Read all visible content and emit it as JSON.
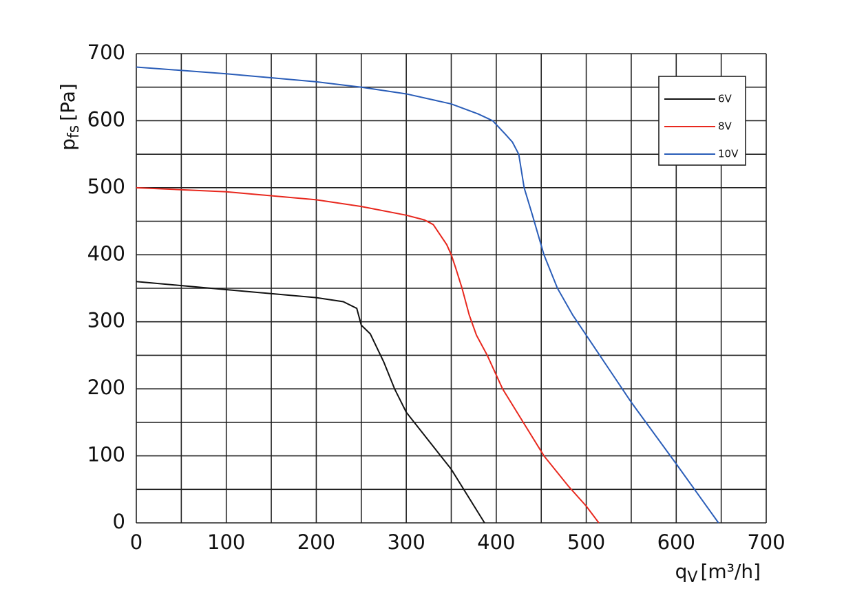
{
  "chart_data": {
    "type": "line",
    "ylabel": {
      "symbol": "p",
      "subscript": "fs",
      "unit": "[Pa]"
    },
    "xlabel": {
      "symbol": "q",
      "subscript": "V",
      "unit": "[m³/h]"
    },
    "xlim": [
      0,
      700
    ],
    "ylim": [
      0,
      700
    ],
    "xticks": [
      0,
      100,
      200,
      300,
      400,
      500,
      600,
      700
    ],
    "yticks": [
      0,
      100,
      200,
      300,
      400,
      500,
      600,
      700
    ],
    "minor_xticks": [
      50,
      150,
      250,
      350,
      450,
      550,
      650
    ],
    "minor_yticks": [
      50,
      150,
      250,
      350,
      450,
      550,
      650
    ],
    "grid": true,
    "legend": "upper right",
    "series": [
      {
        "name": "6V",
        "color": "#111111",
        "x": [
          0,
          100,
          200,
          230,
          245,
          250,
          260,
          275,
          287,
          300,
          350,
          387
        ],
        "values": [
          360,
          348,
          336,
          330,
          320,
          295,
          282,
          240,
          200,
          165,
          80,
          0
        ]
      },
      {
        "name": "8V",
        "color": "#e8281e",
        "x": [
          0,
          100,
          200,
          250,
          300,
          320,
          330,
          335,
          345,
          350,
          355,
          362,
          370,
          378,
          390,
          407,
          430,
          453,
          480,
          500,
          514
        ],
        "values": [
          500,
          494,
          482,
          472,
          459,
          452,
          445,
          435,
          415,
          400,
          380,
          350,
          310,
          280,
          250,
          200,
          150,
          100,
          55,
          25,
          0
        ]
      },
      {
        "name": "10V",
        "color": "#2a5db8",
        "x": [
          0,
          100,
          200,
          250,
          300,
          350,
          380,
          396,
          410,
          418,
          425,
          431,
          440,
          453,
          468,
          485,
          500,
          550,
          600,
          647
        ],
        "values": [
          680,
          670,
          658,
          650,
          640,
          625,
          610,
          600,
          580,
          568,
          550,
          500,
          460,
          400,
          350,
          310,
          280,
          180,
          88,
          0
        ]
      }
    ]
  }
}
